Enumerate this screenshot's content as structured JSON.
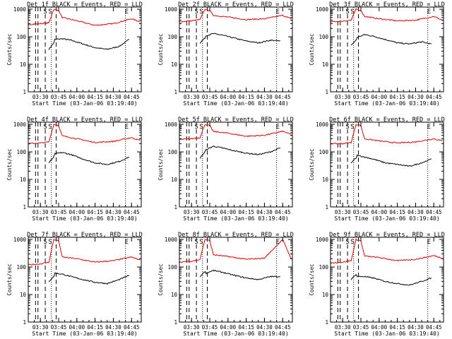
{
  "figure": {
    "background": "#ffffff",
    "colors": {
      "events": "#000000",
      "lld": "#e00000",
      "axes": "#000000"
    }
  },
  "chart_data": [
    {
      "type": "line",
      "title": "Det 1f BLACK = Events, RED = LLD",
      "xlabel": "Start Time (03-Jan-06 03:19:40)",
      "ylabel": "Counts/sec",
      "yscale": "log",
      "ylim": [
        1,
        1200
      ],
      "xlim": [
        "03:20",
        "04:53"
      ],
      "xticks": [
        "03:30",
        "03:45",
        "04:00",
        "04:15",
        "04:30",
        "04:45"
      ],
      "yticks": [
        "1",
        "10",
        "100",
        "1000"
      ],
      "markers": [
        "E",
        "S",
        "S",
        "E"
      ],
      "series": [
        {
          "name": "BLACK = Events",
          "color": "#000000",
          "x": [
            "03:37",
            "03:41",
            "03:42",
            "03:48",
            "03:55",
            "04:05",
            "04:15",
            "04:25",
            "04:35",
            "04:43"
          ],
          "y": [
            35,
            60,
            80,
            85,
            75,
            55,
            40,
            35,
            45,
            80
          ]
        },
        {
          "name": "RED = LLD",
          "color": "#e00000",
          "x": [
            "03:20",
            "03:30",
            "03:37",
            "03:41",
            "03:45",
            "03:48",
            "04:00",
            "04:15",
            "04:30",
            "04:45",
            "04:52"
          ],
          "y": [
            280,
            300,
            320,
            1000,
            900,
            500,
            380,
            260,
            300,
            450,
            350
          ]
        }
      ]
    },
    {
      "type": "line",
      "title": "Det 2f BLACK = Events, RED = LLD",
      "xlabel": "Start Time (03-Jan-06 03:19:40)",
      "ylabel": "Counts/sec",
      "yscale": "log",
      "ylim": [
        1,
        1200
      ],
      "xlim": [
        "03:20",
        "04:53"
      ],
      "xticks": [
        "03:30",
        "03:45",
        "04:00",
        "04:15",
        "04:30",
        "04:45"
      ],
      "yticks": [
        "1",
        "10",
        "100",
        "1000"
      ],
      "markers": [
        "E",
        "S",
        "S",
        "E"
      ],
      "series": [
        {
          "name": "BLACK = Events",
          "color": "#000000",
          "x": [
            "03:37",
            "03:41",
            "03:42",
            "03:48",
            "03:55",
            "04:05",
            "04:15",
            "04:25",
            "04:35",
            "04:43"
          ],
          "y": [
            60,
            90,
            110,
            130,
            115,
            90,
            70,
            60,
            75,
            70
          ]
        },
        {
          "name": "RED = LLD",
          "color": "#e00000",
          "x": [
            "03:20",
            "03:30",
            "03:37",
            "03:41",
            "03:45",
            "03:48",
            "04:00",
            "04:15",
            "04:30",
            "04:45",
            "04:52"
          ],
          "y": [
            350,
            380,
            420,
            1000,
            900,
            600,
            520,
            420,
            450,
            600,
            450
          ]
        }
      ]
    },
    {
      "type": "line",
      "title": "Det 3f BLACK = Events, RED = LLD",
      "xlabel": "Start Time (03-Jan-06 03:19:40)",
      "ylabel": "Counts/sec",
      "yscale": "log",
      "ylim": [
        1,
        1200
      ],
      "xlim": [
        "03:20",
        "04:53"
      ],
      "xticks": [
        "03:30",
        "03:45",
        "04:00",
        "04:15",
        "04:30",
        "04:45"
      ],
      "yticks": [
        "1",
        "10",
        "100",
        "1000"
      ],
      "markers": [
        "E",
        "S",
        "S",
        "E"
      ],
      "series": [
        {
          "name": "BLACK = Events",
          "color": "#000000",
          "x": [
            "03:37",
            "03:41",
            "03:42",
            "03:48",
            "03:55",
            "04:05",
            "04:15",
            "04:25",
            "04:35",
            "04:43"
          ],
          "y": [
            50,
            75,
            95,
            120,
            105,
            80,
            60,
            55,
            65,
            55
          ]
        },
        {
          "name": "RED = LLD",
          "color": "#e00000",
          "x": [
            "03:20",
            "03:30",
            "03:37",
            "03:41",
            "03:45",
            "03:48",
            "04:00",
            "04:15",
            "04:30",
            "04:45",
            "04:52"
          ],
          "y": [
            350,
            370,
            400,
            1000,
            900,
            550,
            450,
            380,
            400,
            550,
            400
          ]
        }
      ]
    },
    {
      "type": "line",
      "title": "Det 4f BLACK = Events, RED = LLD",
      "xlabel": "Start Time (03-Jan-06 03:19:40)",
      "ylabel": "Counts/sec",
      "yscale": "log",
      "ylim": [
        1,
        1200
      ],
      "xlim": [
        "03:20",
        "04:53"
      ],
      "xticks": [
        "03:30",
        "03:45",
        "04:00",
        "04:15",
        "04:30",
        "04:45"
      ],
      "yticks": [
        "1",
        "10",
        "100",
        "1000"
      ],
      "markers": [
        "E",
        "S",
        "S",
        "E"
      ],
      "series": [
        {
          "name": "BLACK = Events",
          "color": "#000000",
          "x": [
            "03:37",
            "03:41",
            "03:42",
            "03:48",
            "03:55",
            "04:05",
            "04:15",
            "04:25",
            "04:35",
            "04:43"
          ],
          "y": [
            40,
            65,
            85,
            95,
            80,
            55,
            40,
            35,
            45,
            65
          ]
        },
        {
          "name": "RED = LLD",
          "color": "#e00000",
          "x": [
            "03:20",
            "03:30",
            "03:37",
            "03:41",
            "03:45",
            "03:48",
            "04:00",
            "04:15",
            "04:30",
            "04:45",
            "04:52"
          ],
          "y": [
            200,
            210,
            230,
            1000,
            900,
            380,
            300,
            220,
            240,
            330,
            260
          ]
        }
      ]
    },
    {
      "type": "line",
      "title": "Det 5f BLACK = Events, RED = LLD",
      "xlabel": "Start Time (03-Jan-06 03:19:40)",
      "ylabel": "Counts/sec",
      "yscale": "log",
      "ylim": [
        1,
        1200
      ],
      "xlim": [
        "03:20",
        "04:53"
      ],
      "xticks": [
        "03:30",
        "03:45",
        "04:00",
        "04:15",
        "04:30",
        "04:45"
      ],
      "yticks": [
        "1",
        "10",
        "100",
        "1000"
      ],
      "markers": [
        "E",
        "S",
        "S",
        "E"
      ],
      "series": [
        {
          "name": "BLACK = Events",
          "color": "#000000",
          "x": [
            "03:37",
            "03:41",
            "03:42",
            "03:48",
            "03:55",
            "04:05",
            "04:15",
            "04:25",
            "04:35",
            "04:43"
          ],
          "y": [
            60,
            100,
            120,
            160,
            140,
            110,
            90,
            80,
            100,
            140
          ]
        },
        {
          "name": "RED = LLD",
          "color": "#e00000",
          "x": [
            "03:20",
            "03:30",
            "03:37",
            "03:41",
            "03:45",
            "03:48",
            "04:00",
            "04:15",
            "04:30",
            "04:45",
            "04:52"
          ],
          "y": [
            280,
            300,
            330,
            1000,
            900,
            550,
            480,
            370,
            400,
            560,
            430
          ]
        }
      ]
    },
    {
      "type": "line",
      "title": "Det 6f BLACK = Events, RED = LLD",
      "xlabel": "Start Time (03-Jan-06 03:19:40)",
      "ylabel": "Counts/sec",
      "yscale": "log",
      "ylim": [
        1,
        1200
      ],
      "xlim": [
        "03:20",
        "04:53"
      ],
      "xticks": [
        "03:30",
        "03:45",
        "04:00",
        "04:15",
        "04:30",
        "04:45"
      ],
      "yticks": [
        "1",
        "10",
        "100",
        "1000"
      ],
      "markers": [
        "E",
        "S",
        "S",
        "E"
      ],
      "series": [
        {
          "name": "BLACK = Events",
          "color": "#000000",
          "x": [
            "03:37",
            "03:41",
            "03:42",
            "03:48",
            "03:55",
            "04:05",
            "04:15",
            "04:25",
            "04:35",
            "04:43"
          ],
          "y": [
            40,
            60,
            75,
            65,
            55,
            40,
            35,
            30,
            40,
            55
          ]
        },
        {
          "name": "RED = LLD",
          "color": "#e00000",
          "x": [
            "03:20",
            "03:30",
            "03:37",
            "03:41",
            "03:45",
            "03:48",
            "04:00",
            "04:15",
            "04:30",
            "04:45",
            "04:52"
          ],
          "y": [
            200,
            200,
            220,
            1000,
            900,
            300,
            250,
            210,
            230,
            300,
            250
          ]
        }
      ]
    },
    {
      "type": "line",
      "title": "Det 7f BLACK = Events, RED = LLD",
      "xlabel": "Start Time (03-Jan-06 03:19:40)",
      "ylabel": "Counts/sec",
      "yscale": "log",
      "ylim": [
        1,
        1200
      ],
      "xlim": [
        "03:20",
        "04:53"
      ],
      "xticks": [
        "03:30",
        "03:45",
        "04:00",
        "04:15",
        "04:30",
        "04:45"
      ],
      "yticks": [
        "1",
        "10",
        "100",
        "1000"
      ],
      "markers": [
        "E",
        "S",
        "S",
        "E"
      ],
      "series": [
        {
          "name": "BLACK = Events",
          "color": "#000000",
          "x": [
            "03:37",
            "03:41",
            "03:42",
            "03:48",
            "03:55",
            "04:05",
            "04:15",
            "04:25",
            "04:35",
            "04:43"
          ],
          "y": [
            30,
            45,
            60,
            55,
            45,
            35,
            28,
            25,
            35,
            50
          ]
        },
        {
          "name": "RED = LLD",
          "color": "#e00000",
          "x": [
            "03:20",
            "03:30",
            "03:37",
            "03:41",
            "03:45",
            "03:48",
            "04:00",
            "04:15",
            "04:30",
            "04:45",
            "04:52"
          ],
          "y": [
            120,
            130,
            150,
            1000,
            900,
            230,
            200,
            150,
            170,
            230,
            180
          ]
        }
      ]
    },
    {
      "type": "line",
      "title": "Det 8f BLACK = Events, RED = LLD",
      "xlabel": "Start Time (03-Jan-06 03:19:40)",
      "ylabel": "Counts/sec",
      "yscale": "log",
      "ylim": [
        1,
        1200
      ],
      "xlim": [
        "03:20",
        "04:53"
      ],
      "xticks": [
        "03:30",
        "03:45",
        "04:00",
        "04:15",
        "04:30",
        "04:45"
      ],
      "yticks": [
        "1",
        "10",
        "100",
        "1000"
      ],
      "markers": [
        "E",
        "S",
        "S",
        "E"
      ],
      "series": [
        {
          "name": "BLACK = Events",
          "color": "#000000",
          "x": [
            "03:37",
            "03:41",
            "03:42",
            "03:48",
            "03:55",
            "04:05",
            "04:15",
            "04:25",
            "04:35",
            "04:43"
          ],
          "y": [
            45,
            70,
            60,
            75,
            65,
            50,
            40,
            35,
            45,
            45
          ]
        },
        {
          "name": "RED = LLD",
          "color": "#e00000",
          "x": [
            "03:20",
            "03:30",
            "03:37",
            "03:41",
            "03:45",
            "03:48",
            "04:00",
            "04:15",
            "04:30",
            "04:45",
            "04:52"
          ],
          "y": [
            150,
            160,
            190,
            1000,
            900,
            280,
            240,
            190,
            210,
            1000,
            200
          ]
        }
      ]
    },
    {
      "type": "line",
      "title": "Det 9f BLACK = Events, RED = LLD",
      "xlabel": "Start Time (03-Jan-06 03:19:40)",
      "ylabel": "Counts/sec",
      "yscale": "log",
      "ylim": [
        1,
        1200
      ],
      "xlim": [
        "03:20",
        "04:53"
      ],
      "xticks": [
        "03:30",
        "03:45",
        "04:00",
        "04:15",
        "04:30",
        "04:45"
      ],
      "yticks": [
        "1",
        "10",
        "100",
        "1000"
      ],
      "markers": [
        "E",
        "S",
        "S",
        "E"
      ],
      "series": [
        {
          "name": "BLACK = Events",
          "color": "#000000",
          "x": [
            "03:37",
            "03:41",
            "03:42",
            "03:48",
            "03:55",
            "04:05",
            "04:15",
            "04:25",
            "04:35",
            "04:43"
          ],
          "y": [
            35,
            55,
            45,
            45,
            40,
            30,
            25,
            22,
            30,
            40
          ]
        },
        {
          "name": "RED = LLD",
          "color": "#e00000",
          "x": [
            "03:20",
            "03:30",
            "03:37",
            "03:41",
            "03:45",
            "03:48",
            "04:00",
            "04:15",
            "04:30",
            "04:45",
            "04:52"
          ],
          "y": [
            140,
            150,
            170,
            1000,
            900,
            250,
            220,
            170,
            190,
            260,
            210
          ]
        }
      ]
    }
  ]
}
